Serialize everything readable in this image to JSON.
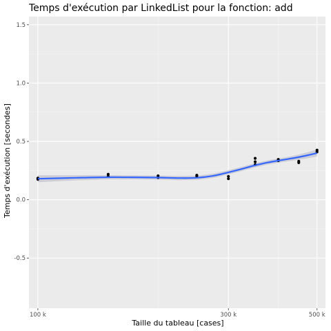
{
  "chart_data": {
    "type": "scatter",
    "title": "Temps d'exécution par LinkedList pour la fonction: add",
    "xlabel": "Taille du tableau [cases]",
    "ylabel": "Temps d'exécution [secondes]",
    "x_scale": "log",
    "xlim": [
      95000,
      525000
    ],
    "ylim": [
      -0.93,
      1.57
    ],
    "x_ticks": [
      100000,
      300000,
      500000
    ],
    "x_tick_labels": [
      "100 k",
      "300 k",
      "500 k"
    ],
    "x_minor_ticks": [
      200000,
      400000
    ],
    "y_ticks": [
      -0.5,
      0.0,
      0.5,
      1.0,
      1.5
    ],
    "y_tick_labels": [
      "-0.5",
      "0.0",
      "0.5",
      "1.0",
      "1.5"
    ],
    "grid": true,
    "legend": "none",
    "colors": {
      "panel_background": "#ebebeb",
      "grid_major": "#ffffff",
      "grid_minor": "#f5f5f5",
      "points": "#000000",
      "smooth_line": "#3366ff",
      "confidence_band": "#c8c8d4"
    },
    "points": [
      {
        "x": 100000,
        "y": 0.175
      },
      {
        "x": 100000,
        "y": 0.185
      },
      {
        "x": 150000,
        "y": 0.2
      },
      {
        "x": 150000,
        "y": 0.218
      },
      {
        "x": 200000,
        "y": 0.19
      },
      {
        "x": 200000,
        "y": 0.205
      },
      {
        "x": 250000,
        "y": 0.2
      },
      {
        "x": 250000,
        "y": 0.21
      },
      {
        "x": 300000,
        "y": 0.18
      },
      {
        "x": 300000,
        "y": 0.2
      },
      {
        "x": 350000,
        "y": 0.3
      },
      {
        "x": 350000,
        "y": 0.325
      },
      {
        "x": 350000,
        "y": 0.355
      },
      {
        "x": 400000,
        "y": 0.335
      },
      {
        "x": 400000,
        "y": 0.345
      },
      {
        "x": 450000,
        "y": 0.318
      },
      {
        "x": 450000,
        "y": 0.33
      },
      {
        "x": 500000,
        "y": 0.41
      },
      {
        "x": 500000,
        "y": 0.425
      }
    ],
    "smooth": {
      "x": [
        100000,
        125000,
        150000,
        175000,
        200000,
        225000,
        250000,
        275000,
        300000,
        325000,
        350000,
        375000,
        400000,
        425000,
        450000,
        475000,
        500000
      ],
      "y": [
        0.18,
        0.188,
        0.193,
        0.192,
        0.19,
        0.186,
        0.188,
        0.205,
        0.235,
        0.265,
        0.295,
        0.318,
        0.335,
        0.35,
        0.365,
        0.382,
        0.4
      ],
      "band_halfwidth": [
        0.03,
        0.022,
        0.018,
        0.017,
        0.017,
        0.018,
        0.018,
        0.018,
        0.018,
        0.018,
        0.018,
        0.018,
        0.018,
        0.019,
        0.022,
        0.026,
        0.03
      ]
    }
  }
}
